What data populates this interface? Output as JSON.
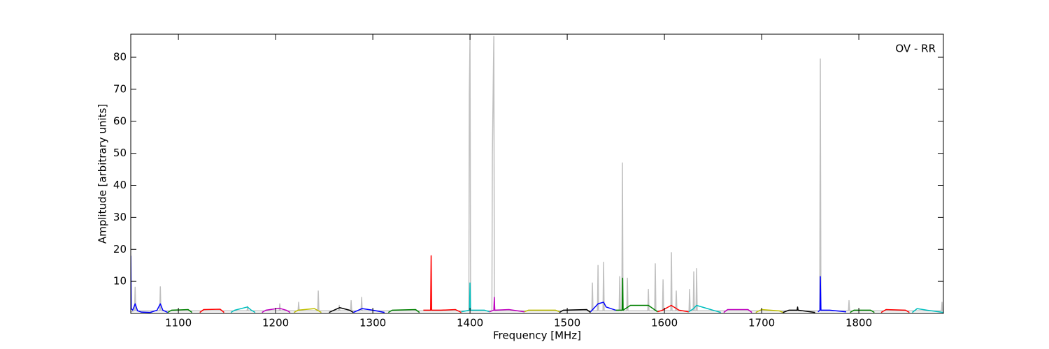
{
  "chart_data": {
    "type": "line",
    "xlabel": "Frequency [MHz]",
    "ylabel": "Amplitude [arbitrary units]",
    "annotation": "OV - RR",
    "xlim": [
      1051,
      1887
    ],
    "ylim": [
      0,
      87.2
    ],
    "xticks": [
      1100,
      1200,
      1300,
      1400,
      1500,
      1600,
      1700,
      1800
    ],
    "yticks": [
      10,
      20,
      30,
      40,
      50,
      60,
      70,
      80
    ],
    "series": [
      {
        "color": "#c0c0c0",
        "x": [
          1051,
          1054.9,
          1055.5,
          1056.1,
          1080.8,
          1081.4,
          1082,
          1170.6,
          1171.2,
          1171.8,
          1203.7,
          1204.3,
          1204.9,
          1223.1,
          1223.7,
          1224.3,
          1243.3,
          1243.9,
          1244.5,
          1264.9,
          1265.5,
          1266.1,
          1277.1,
          1277.7,
          1278.3,
          1287.9,
          1288.5,
          1289.1,
          1398.8,
          1399.3,
          1400,
          1400.6,
          1422.5,
          1423,
          1424.5,
          1425.1,
          1525.3,
          1525.9,
          1526.5,
          1531.1,
          1531.7,
          1532.3,
          1536.8,
          1537.4,
          1538,
          1553.4,
          1554,
          1554.6,
          1556.2,
          1556.8,
          1557.4,
          1561.3,
          1561.9,
          1562.5,
          1582.9,
          1583.5,
          1584.1,
          1590,
          1590.6,
          1591.2,
          1598,
          1598.6,
          1599.2,
          1606.6,
          1607.2,
          1607.8,
          1611.6,
          1612.2,
          1612.8,
          1625.3,
          1625.9,
          1626.5,
          1629.6,
          1630.2,
          1630.8,
          1632.5,
          1633.1,
          1633.7,
          1759.8,
          1760.4,
          1761,
          1789.3,
          1789.9,
          1790.5,
          1885,
          1885.6,
          1886.2,
          1887
        ],
        "values": [
          0.5,
          0.8,
          8.2,
          0.8,
          0.8,
          8.3,
          0.8,
          0.8,
          2.2,
          0.8,
          0.8,
          3,
          0.8,
          0.8,
          3.5,
          0.8,
          0.8,
          7,
          0.8,
          0.8,
          2.5,
          0.8,
          0.8,
          4,
          0.8,
          0.8,
          5,
          0.8,
          0.8,
          68.5,
          87,
          0.8,
          0.8,
          49.5,
          86.5,
          0.8,
          0.8,
          9.5,
          0.8,
          0.8,
          15,
          0.8,
          0.8,
          16,
          0.8,
          0.8,
          11.5,
          0.8,
          0.8,
          47,
          0.8,
          0.8,
          11,
          0.8,
          0.8,
          7.5,
          0.8,
          0.8,
          15.5,
          0.8,
          0.8,
          10.5,
          0.8,
          0.8,
          19,
          0.8,
          0.8,
          7,
          0.8,
          0.8,
          7.5,
          0.8,
          0.8,
          13,
          0.8,
          0.8,
          14,
          0.8,
          0.8,
          79.5,
          0.8,
          0.8,
          4,
          0.8,
          0.8,
          3.5,
          0.8,
          0.5
        ]
      },
      {
        "color": "#0000ff",
        "x": [
          1051,
          1051.5,
          1053,
          1055.5,
          1058,
          1062,
          1071
        ],
        "values": [
          18,
          1.5,
          1,
          3,
          0.8,
          0.4,
          0.3
        ]
      },
      {
        "color": "#0000ff",
        "x": [
          1071,
          1078,
          1081.4,
          1084,
          1089
        ],
        "values": [
          0.3,
          1,
          3,
          1,
          0.3
        ]
      },
      {
        "color": "#008000",
        "x": [
          1089,
          1093,
          1110,
          1114
        ],
        "values": [
          0.3,
          1,
          1.2,
          0.3
        ]
      },
      {
        "color": "#ff0000",
        "x": [
          1122,
          1126,
          1143,
          1147
        ],
        "values": [
          0.3,
          1.2,
          1.3,
          0.3
        ]
      },
      {
        "color": "#00bfbf",
        "x": [
          1154,
          1158,
          1171,
          1175,
          1179
        ],
        "values": [
          0.3,
          1,
          2,
          1,
          0.3
        ]
      },
      {
        "color": "#bf00bf",
        "x": [
          1186,
          1190,
          1204,
          1211,
          1215
        ],
        "values": [
          0.3,
          1,
          1.6,
          1,
          0.3
        ]
      },
      {
        "color": "#bfbf00",
        "x": [
          1219,
          1223,
          1240,
          1247
        ],
        "values": [
          0.3,
          1,
          1.5,
          0.3
        ]
      },
      {
        "color": "#000000",
        "x": [
          1255,
          1260,
          1266,
          1276,
          1280
        ],
        "values": [
          0.3,
          1,
          1.8,
          1,
          0.3
        ]
      },
      {
        "color": "#0000ff",
        "x": [
          1280,
          1289,
          1300,
          1312
        ],
        "values": [
          0.3,
          1.5,
          1,
          0.3
        ]
      },
      {
        "color": "#008000",
        "x": [
          1316,
          1320,
          1344,
          1348
        ],
        "values": [
          0.3,
          1,
          1.2,
          0.3
        ]
      },
      {
        "color": "#ff0000",
        "x": [
          1352,
          1359.5,
          1360,
          1360.5,
          1370,
          1385,
          1391
        ],
        "values": [
          1,
          1,
          18,
          1,
          1,
          1.2,
          0.3
        ]
      },
      {
        "color": "#00bfbf",
        "x": [
          1391,
          1399.5,
          1400,
          1400.5,
          1415,
          1420
        ],
        "values": [
          0.5,
          1,
          9.5,
          1,
          1,
          0.5
        ]
      },
      {
        "color": "#bf00bf",
        "x": [
          1420,
          1424.5,
          1425,
          1425.5,
          1440,
          1456
        ],
        "values": [
          0.5,
          1,
          5,
          1,
          1.2,
          0.5
        ]
      },
      {
        "color": "#bfbf00",
        "x": [
          1456,
          1460,
          1488,
          1492
        ],
        "values": [
          0.5,
          1,
          1,
          0.5
        ]
      },
      {
        "color": "#000000",
        "x": [
          1492,
          1496,
          1520,
          1524
        ],
        "values": [
          0.3,
          1,
          1.2,
          0.3
        ]
      },
      {
        "color": "#0000ff",
        "x": [
          1524,
          1531.7,
          1537.4,
          1540,
          1550
        ],
        "values": [
          0.5,
          3,
          3.5,
          2,
          1
        ]
      },
      {
        "color": "#008000",
        "x": [
          1550,
          1556.5,
          1557,
          1557.5,
          1565,
          1583.5,
          1593
        ],
        "values": [
          1,
          1,
          11,
          1,
          2.5,
          2.5,
          0.5
        ]
      },
      {
        "color": "#ff0000",
        "x": [
          1593,
          1598,
          1607,
          1615,
          1625
        ],
        "values": [
          0.5,
          1,
          2.5,
          1,
          0.5
        ]
      },
      {
        "color": "#00bfbf",
        "x": [
          1625,
          1630,
          1633,
          1650,
          1658
        ],
        "values": [
          0.5,
          1.5,
          2.5,
          1,
          0.3
        ]
      },
      {
        "color": "#bf00bf",
        "x": [
          1661,
          1665,
          1686,
          1690
        ],
        "values": [
          0.3,
          1.2,
          1.2,
          0.3
        ]
      },
      {
        "color": "#bfbf00",
        "x": [
          1694,
          1700,
          1718,
          1722
        ],
        "values": [
          0.3,
          1.2,
          0.8,
          0.3
        ]
      },
      {
        "color": "#000000",
        "x": [
          1722,
          1728,
          1736.5,
          1737,
          1737.5,
          1755
        ],
        "values": [
          0.3,
          1,
          1,
          2,
          1,
          0.3
        ]
      },
      {
        "color": "#0000ff",
        "x": [
          1758,
          1760,
          1760.4,
          1761,
          1770,
          1787
        ],
        "values": [
          0.5,
          1,
          11.5,
          1,
          1,
          0.5
        ]
      },
      {
        "color": "#008000",
        "x": [
          1791,
          1795,
          1812,
          1816
        ],
        "values": [
          0.3,
          1,
          1,
          0.3
        ]
      },
      {
        "color": "#ff0000",
        "x": [
          1823,
          1828,
          1848,
          1852
        ],
        "values": [
          0.3,
          1.2,
          1,
          0.3
        ]
      },
      {
        "color": "#00bfbf",
        "x": [
          1855,
          1860,
          1870,
          1887
        ],
        "values": [
          0.3,
          1.5,
          1,
          0.3
        ]
      }
    ]
  }
}
